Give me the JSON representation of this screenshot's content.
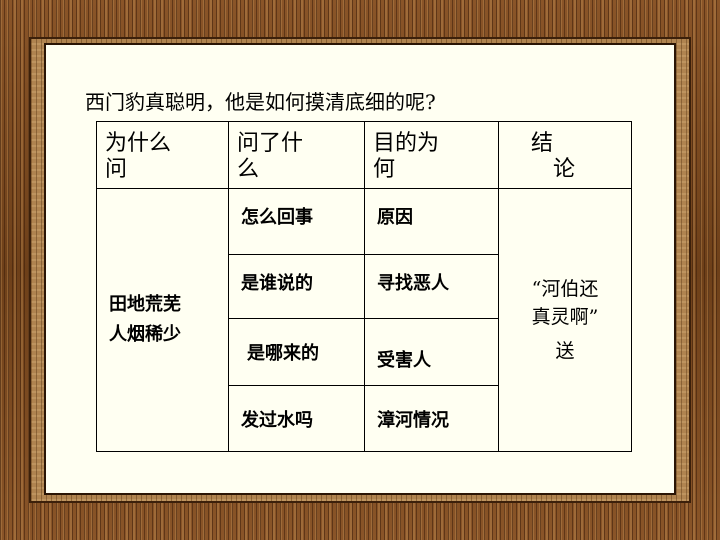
{
  "heading": "西门豹真聪明，他是如何摸清底细的呢?",
  "table": {
    "headers": [
      {
        "line1": "为什么",
        "line2": "问"
      },
      {
        "line1": "问了什",
        "line2": "么"
      },
      {
        "line1": "目的为",
        "line2": "何"
      },
      {
        "line1": "结",
        "line2": "论"
      }
    ],
    "symptom": {
      "line1": "田地荒芜",
      "line2": "人烟稀少"
    },
    "rows": [
      {
        "question": "怎么回事",
        "purpose": "原因"
      },
      {
        "question": "是谁说的",
        "purpose": "寻找恶人"
      },
      {
        "question": "是哪来的",
        "purpose": "受害人"
      },
      {
        "question": "发过水吗",
        "purpose": "漳河情况"
      }
    ],
    "conclusion": {
      "line1": "“河伯还",
      "line2": "真灵啊”",
      "line3": "送"
    }
  }
}
